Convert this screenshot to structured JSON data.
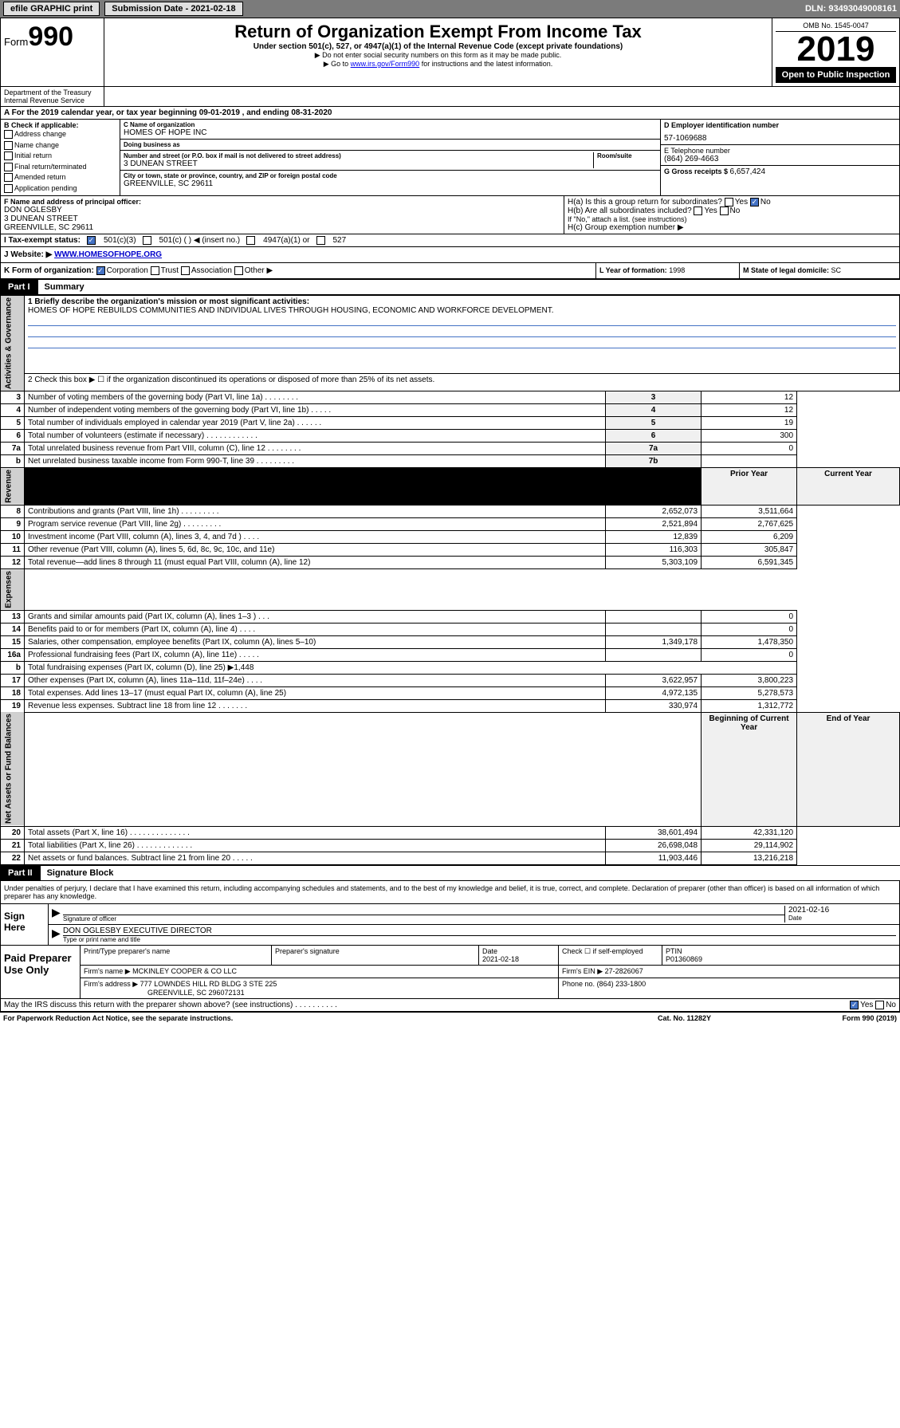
{
  "top": {
    "efile": "efile GRAPHIC print",
    "sub_date_label": "Submission Date - 2021-02-18",
    "dln": "DLN: 93493049008161"
  },
  "header": {
    "form_label": "Form",
    "form_no": "990",
    "title": "Return of Organization Exempt From Income Tax",
    "subtitle": "Under section 501(c), 527, or 4947(a)(1) of the Internal Revenue Code (except private foundations)",
    "note1": "▶ Do not enter social security numbers on this form as it may be made public.",
    "note2_pre": "▶ Go to ",
    "note2_link": "www.irs.gov/Form990",
    "note2_post": " for instructions and the latest information.",
    "omb": "OMB No. 1545-0047",
    "year": "2019",
    "open": "Open to Public Inspection",
    "dept": "Department of the Treasury\nInternal Revenue Service"
  },
  "period": {
    "text": "A For the 2019 calendar year, or tax year beginning 09-01-2019   , and ending 08-31-2020"
  },
  "boxB": {
    "label": "B Check if applicable:",
    "items": [
      "Address change",
      "Name change",
      "Initial return",
      "Final return/terminated",
      "Amended return",
      "Application pending"
    ]
  },
  "boxC": {
    "name_label": "C Name of organization",
    "name": "HOMES OF HOPE INC",
    "dba_label": "Doing business as",
    "dba": "",
    "addr_label": "Number and street (or P.O. box if mail is not delivered to street address)",
    "addr": "3 DUNEAN STREET",
    "room_label": "Room/suite",
    "city_label": "City or town, state or province, country, and ZIP or foreign postal code",
    "city": "GREENVILLE, SC  29611"
  },
  "boxD": {
    "label": "D Employer identification number",
    "val": "57-1069688"
  },
  "boxE": {
    "label": "E Telephone number",
    "val": "(864) 269-4663"
  },
  "boxG": {
    "label": "G Gross receipts $ ",
    "val": "6,657,424"
  },
  "boxF": {
    "label": "F  Name and address of principal officer:",
    "name": "DON OGLESBY",
    "addr1": "3 DUNEAN STREET",
    "addr2": "GREENVILLE, SC  29611"
  },
  "boxH": {
    "a": "H(a)  Is this a group return for subordinates?",
    "b": "H(b)  Are all subordinates included?",
    "b_note": "If \"No,\" attach a list. (see instructions)",
    "c": "H(c)  Group exemption number ▶"
  },
  "boxI": {
    "label": "I  Tax-exempt status:",
    "opts": [
      "501(c)(3)",
      "501(c) (  ) ◀ (insert no.)",
      "4947(a)(1) or",
      "527"
    ]
  },
  "boxJ": {
    "label": "J  Website: ▶ ",
    "val": "WWW.HOMESOFHOPE.ORG"
  },
  "boxK": {
    "label": "K Form of organization:",
    "opts": [
      "Corporation",
      "Trust",
      "Association",
      "Other ▶"
    ]
  },
  "boxL": {
    "label": "L Year of formation: ",
    "val": "1998"
  },
  "boxM": {
    "label": "M State of legal domicile: ",
    "val": "SC"
  },
  "part1": {
    "label": "Part I",
    "title": "Summary"
  },
  "summary": {
    "line1_label": "1  Briefly describe the organization's mission or most significant activities:",
    "line1_text": "HOMES OF HOPE REBUILDS COMMUNITIES AND INDIVIDUAL LIVES THROUGH HOUSING, ECONOMIC AND WORKFORCE DEVELOPMENT.",
    "line2": "2  Check this box ▶ ☐  if the organization discontinued its operations or disposed of more than 25% of its net assets.",
    "sides": [
      "Activities & Governance",
      "Revenue",
      "Expenses",
      "Net Assets or Fund Balances"
    ],
    "gov_rows": [
      {
        "n": "3",
        "d": "Number of voting members of the governing body (Part VI, line 1a)  .   .   .   .   .   .   .   .",
        "ln": "3",
        "v": "12"
      },
      {
        "n": "4",
        "d": "Number of independent voting members of the governing body (Part VI, line 1b)  .   .   .   .   .",
        "ln": "4",
        "v": "12"
      },
      {
        "n": "5",
        "d": "Total number of individuals employed in calendar year 2019 (Part V, line 2a)  .   .   .   .   .   .",
        "ln": "5",
        "v": "19"
      },
      {
        "n": "6",
        "d": "Total number of volunteers (estimate if necessary)  .   .   .   .   .   .   .   .   .   .   .   .",
        "ln": "6",
        "v": "300"
      },
      {
        "n": "7a",
        "d": "Total unrelated business revenue from Part VIII, column (C), line 12  .   .   .   .   .   .   .   .",
        "ln": "7a",
        "v": "0"
      },
      {
        "n": "b",
        "d": "Net unrelated business taxable income from Form 990-T, line 39  .   .   .   .   .   .   .   .   .",
        "ln": "7b",
        "v": ""
      }
    ],
    "col_headers": [
      "Prior Year",
      "Current Year"
    ],
    "rev_rows": [
      {
        "n": "8",
        "d": "Contributions and grants (Part VIII, line 1h)  .   .   .   .   .   .   .   .   .",
        "p": "2,652,073",
        "c": "3,511,664"
      },
      {
        "n": "9",
        "d": "Program service revenue (Part VIII, line 2g)  .   .   .   .   .   .   .   .   .",
        "p": "2,521,894",
        "c": "2,767,625"
      },
      {
        "n": "10",
        "d": "Investment income (Part VIII, column (A), lines 3, 4, and 7d )  .   .   .   .",
        "p": "12,839",
        "c": "6,209"
      },
      {
        "n": "11",
        "d": "Other revenue (Part VIII, column (A), lines 5, 6d, 8c, 9c, 10c, and 11e)",
        "p": "116,303",
        "c": "305,847"
      },
      {
        "n": "12",
        "d": "Total revenue—add lines 8 through 11 (must equal Part VIII, column (A), line 12)",
        "p": "5,303,109",
        "c": "6,591,345"
      }
    ],
    "exp_rows": [
      {
        "n": "13",
        "d": "Grants and similar amounts paid (Part IX, column (A), lines 1–3 )  .   .   .",
        "p": "",
        "c": "0"
      },
      {
        "n": "14",
        "d": "Benefits paid to or for members (Part IX, column (A), line 4)  .   .   .   .",
        "p": "",
        "c": "0"
      },
      {
        "n": "15",
        "d": "Salaries, other compensation, employee benefits (Part IX, column (A), lines 5–10)",
        "p": "1,349,178",
        "c": "1,478,350"
      },
      {
        "n": "16a",
        "d": "Professional fundraising fees (Part IX, column (A), line 11e)  .   .   .   .   .",
        "p": "",
        "c": "0"
      },
      {
        "n": "b",
        "d": "Total fundraising expenses (Part IX, column (D), line 25) ▶1,448",
        "p": "",
        "c": "",
        "span": true
      },
      {
        "n": "17",
        "d": "Other expenses (Part IX, column (A), lines 11a–11d, 11f–24e)  .   .   .   .",
        "p": "3,622,957",
        "c": "3,800,223"
      },
      {
        "n": "18",
        "d": "Total expenses. Add lines 13–17 (must equal Part IX, column (A), line 25)",
        "p": "4,972,135",
        "c": "5,278,573"
      },
      {
        "n": "19",
        "d": "Revenue less expenses. Subtract line 18 from line 12  .   .   .   .   .   .   .",
        "p": "330,974",
        "c": "1,312,772"
      }
    ],
    "net_headers": [
      "Beginning of Current Year",
      "End of Year"
    ],
    "net_rows": [
      {
        "n": "20",
        "d": "Total assets (Part X, line 16)  .   .   .   .   .   .   .   .   .   .   .   .   .   .",
        "p": "38,601,494",
        "c": "42,331,120"
      },
      {
        "n": "21",
        "d": "Total liabilities (Part X, line 26)  .   .   .   .   .   .   .   .   .   .   .   .   .",
        "p": "26,698,048",
        "c": "29,114,902"
      },
      {
        "n": "22",
        "d": "Net assets or fund balances. Subtract line 21 from line 20  .   .   .   .   .",
        "p": "11,903,446",
        "c": "13,216,218"
      }
    ]
  },
  "part2": {
    "label": "Part II",
    "title": "Signature Block"
  },
  "sig": {
    "perjury": "Under penalties of perjury, I declare that I have examined this return, including accompanying schedules and statements, and to the best of my knowledge and belief, it is true, correct, and complete. Declaration of preparer (other than officer) is based on all information of which preparer has any knowledge.",
    "sign_here": "Sign Here",
    "sig_officer": "Signature of officer",
    "date": "2021-02-16",
    "date_label": "Date",
    "name_title": "DON OGLESBY EXECUTIVE DIRECTOR",
    "name_label": "Type or print name and title"
  },
  "paid": {
    "label": "Paid Preparer Use Only",
    "h1": "Print/Type preparer's name",
    "h2": "Preparer's signature",
    "h3": "Date",
    "h3v": "2021-02-18",
    "h4": "Check ☐ if self-employed",
    "h5": "PTIN",
    "h5v": "P01360869",
    "firm_name_label": "Firm's name    ▶",
    "firm_name": "MCKINLEY COOPER & CO LLC",
    "firm_ein_label": "Firm's EIN ▶",
    "firm_ein": "27-2826067",
    "firm_addr_label": "Firm's address ▶",
    "firm_addr1": "777 LOWNDES HILL RD BLDG 3 STE 225",
    "firm_addr2": "GREENVILLE, SC  296072131",
    "phone_label": "Phone no.",
    "phone": "(864) 233-1800"
  },
  "discuss": {
    "text": "May the IRS discuss this return with the preparer shown above? (see instructions)  .   .   .   .   .   .   .   .   .   .",
    "yes": "Yes",
    "no": "No"
  },
  "footer": {
    "left": "For Paperwork Reduction Act Notice, see the separate instructions.",
    "mid": "Cat. No. 11282Y",
    "right": "Form 990 (2019)"
  }
}
